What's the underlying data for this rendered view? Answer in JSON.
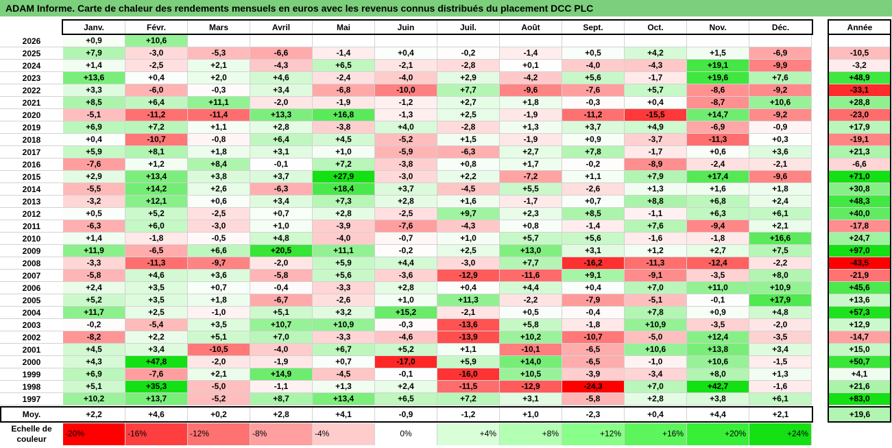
{
  "title": "ADAM Informe. Carte de chaleur des rendements mensuels en euros avec les revenus connus distribués du placement DCC PLC",
  "chart_data": {
    "type": "heatmap",
    "title": "ADAM Informe. Carte de chaleur des rendements mensuels en euros avec les revenus connus distribués du placement DCC PLC",
    "columns": [
      "Janv.",
      "Févr.",
      "Mars",
      "Avril",
      "Mai",
      "Juin",
      "Juil.",
      "Août",
      "Sept.",
      "Oct.",
      "Nov.",
      "Déc."
    ],
    "annual_header": "Année",
    "rows": [
      {
        "year": "2026",
        "values": [
          "+0,9",
          "+10,6",
          "",
          "",
          "",
          "",
          "",
          "",
          "",
          "",
          "",
          ""
        ],
        "annual": ""
      },
      {
        "year": "2025",
        "values": [
          "+7,9",
          "-3,0",
          "-5,3",
          "-6,6",
          "-1,4",
          "+0,4",
          "-0,2",
          "-1,4",
          "+0,5",
          "+4,2",
          "+1,5",
          "-6,9"
        ],
        "annual": "-10,5"
      },
      {
        "year": "2024",
        "values": [
          "+1,4",
          "-2,5",
          "+2,1",
          "-4,3",
          "+6,5",
          "-2,1",
          "-2,8",
          "+0,1",
          "-4,0",
          "-4,3",
          "+19,1",
          "-9,9"
        ],
        "annual": "-3,2"
      },
      {
        "year": "2023",
        "values": [
          "+13,6",
          "+0,4",
          "+2,0",
          "+4,6",
          "-2,4",
          "-4,0",
          "+2,9",
          "-4,2",
          "+5,6",
          "-1,7",
          "+19,6",
          "+7,6"
        ],
        "annual": "+48,9"
      },
      {
        "year": "2022",
        "values": [
          "+3,3",
          "-6,0",
          "-0,3",
          "+3,4",
          "-6,8",
          "-10,0",
          "+7,7",
          "-9,6",
          "-7,6",
          "+5,7",
          "-8,6",
          "-9,2"
        ],
        "annual": "-33,1"
      },
      {
        "year": "2021",
        "values": [
          "+8,5",
          "+6,4",
          "+11,1",
          "-2,0",
          "-1,9",
          "-1,2",
          "+2,7",
          "+1,8",
          "-0,3",
          "+0,4",
          "-8,7",
          "+10,6"
        ],
        "annual": "+28,8"
      },
      {
        "year": "2020",
        "values": [
          "-5,1",
          "-11,2",
          "-11,4",
          "+13,3",
          "+16,8",
          "-1,3",
          "+2,5",
          "-1,9",
          "-11,2",
          "-15,5",
          "+14,7",
          "-9,2"
        ],
        "annual": "-23,0"
      },
      {
        "year": "2019",
        "values": [
          "+6,9",
          "+7,2",
          "+1,1",
          "+2,8",
          "-3,8",
          "+4,0",
          "-2,8",
          "+1,3",
          "+3,7",
          "+4,9",
          "-6,9",
          "-0,9"
        ],
        "annual": "+17,9"
      },
      {
        "year": "2018",
        "values": [
          "+0,4",
          "-10,7",
          "-0,8",
          "+6,4",
          "+4,5",
          "-5,2",
          "+1,5",
          "-1,9",
          "+0,9",
          "-3,7",
          "-11,3",
          "+0,3"
        ],
        "annual": "-19,1"
      },
      {
        "year": "2017",
        "values": [
          "+5,9",
          "+8,1",
          "+1,8",
          "+3,1",
          "+1,0",
          "-5,9",
          "-6,3",
          "+2,7",
          "+7,8",
          "-1,7",
          "+0,6",
          "+3,6"
        ],
        "annual": "+21,3"
      },
      {
        "year": "2016",
        "values": [
          "-7,6",
          "+1,2",
          "+8,4",
          "-0,1",
          "+7,2",
          "-3,8",
          "+0,8",
          "+1,7",
          "-0,2",
          "-8,9",
          "-2,4",
          "-2,1"
        ],
        "annual": "-6,6"
      },
      {
        "year": "2015",
        "values": [
          "+2,9",
          "+13,4",
          "+3,8",
          "+3,7",
          "+27,9",
          "-3,0",
          "+2,2",
          "-7,2",
          "+1,1",
          "+7,9",
          "+17,4",
          "-9,6"
        ],
        "annual": "+71,0"
      },
      {
        "year": "2014",
        "values": [
          "-5,5",
          "+14,2",
          "+2,6",
          "-6,3",
          "+18,4",
          "+3,7",
          "-4,5",
          "+5,5",
          "-2,6",
          "+1,3",
          "+1,6",
          "+1,8"
        ],
        "annual": "+30,8"
      },
      {
        "year": "2013",
        "values": [
          "-3,2",
          "+12,1",
          "+0,6",
          "+3,4",
          "+7,3",
          "+2,8",
          "+1,6",
          "-1,7",
          "+0,7",
          "+8,8",
          "+6,8",
          "+2,4"
        ],
        "annual": "+48,3"
      },
      {
        "year": "2012",
        "values": [
          "+0,5",
          "+5,2",
          "-2,5",
          "+0,7",
          "+2,8",
          "-2,5",
          "+9,7",
          "+2,3",
          "+8,5",
          "-1,1",
          "+6,3",
          "+6,1"
        ],
        "annual": "+40,0"
      },
      {
        "year": "2011",
        "values": [
          "-6,3",
          "+6,0",
          "-3,0",
          "+1,0",
          "-3,9",
          "-7,6",
          "-4,3",
          "+0,8",
          "-1,4",
          "+7,6",
          "-9,4",
          "+2,1"
        ],
        "annual": "-17,8"
      },
      {
        "year": "2010",
        "values": [
          "+1,4",
          "-1,8",
          "-0,5",
          "+4,8",
          "-4,0",
          "-0,7",
          "+1,0",
          "+5,7",
          "+5,6",
          "-1,6",
          "-1,8",
          "+16,6"
        ],
        "annual": "+24,7"
      },
      {
        "year": "2009",
        "values": [
          "+11,9",
          "-6,5",
          "+6,6",
          "+20,5",
          "+11,1",
          "-0,2",
          "+2,5",
          "+13,0",
          "+3,1",
          "+1,2",
          "+2,7",
          "+7,5"
        ],
        "annual": "+97,0"
      },
      {
        "year": "2008",
        "values": [
          "-3,3",
          "-11,3",
          "-9,7",
          "-2,0",
          "+5,9",
          "+4,4",
          "-3,0",
          "+7,7",
          "-16,2",
          "-11,3",
          "-12,4",
          "-2,2"
        ],
        "annual": "-43,5"
      },
      {
        "year": "2007",
        "values": [
          "-5,8",
          "+4,6",
          "+3,6",
          "-5,8",
          "+5,6",
          "-3,6",
          "-12,9",
          "-11,6",
          "+9,1",
          "-9,1",
          "-3,5",
          "+8,0"
        ],
        "annual": "-21,9"
      },
      {
        "year": "2006",
        "values": [
          "+2,4",
          "+3,5",
          "+0,7",
          "-0,4",
          "-3,3",
          "+2,8",
          "+0,4",
          "+4,4",
          "+0,4",
          "+7,0",
          "+11,0",
          "+10,9"
        ],
        "annual": "+45,6"
      },
      {
        "year": "2005",
        "values": [
          "+5,2",
          "+3,5",
          "+1,8",
          "-6,7",
          "-2,6",
          "+1,0",
          "+11,3",
          "-2,2",
          "-7,9",
          "-5,1",
          "-0,1",
          "+17,9"
        ],
        "annual": "+13,6"
      },
      {
        "year": "2004",
        "values": [
          "+11,7",
          "+2,5",
          "-1,0",
          "+5,1",
          "+3,2",
          "+15,2",
          "-2,1",
          "+0,5",
          "-0,4",
          "+7,8",
          "+0,9",
          "+4,8"
        ],
        "annual": "+57,3"
      },
      {
        "year": "2003",
        "values": [
          "-0,2",
          "-5,4",
          "+3,5",
          "+10,7",
          "+10,9",
          "-0,3",
          "-13,6",
          "+5,8",
          "-1,8",
          "+10,9",
          "-3,5",
          "-2,0"
        ],
        "annual": "+12,9"
      },
      {
        "year": "2002",
        "values": [
          "-8,2",
          "+2,2",
          "+5,1",
          "+7,0",
          "-3,3",
          "-4,6",
          "-13,9",
          "+10,2",
          "-10,7",
          "-5,0",
          "+12,4",
          "-3,5"
        ],
        "annual": "-14,7"
      },
      {
        "year": "2001",
        "values": [
          "+4,5",
          "+3,4",
          "-10,5",
          "-4,0",
          "+6,7",
          "+5,2",
          "+1,1",
          "-10,1",
          "-6,5",
          "+10,6",
          "+13,8",
          "+3,4"
        ],
        "annual": "+15,0"
      },
      {
        "year": "2000",
        "values": [
          "+4,3",
          "+47,8",
          "-2,0",
          "-1,9",
          "+0,7",
          "-17,0",
          "+5,9",
          "+14,0",
          "-6,5",
          "-1,0",
          "+10,6",
          "-1,5"
        ],
        "annual": "+50,7"
      },
      {
        "year": "1999",
        "values": [
          "+6,9",
          "-7,6",
          "+2,1",
          "+14,9",
          "-4,5",
          "-0,1",
          "-16,0",
          "+10,5",
          "-3,9",
          "-3,4",
          "+8,0",
          "+1,3"
        ],
        "annual": "+4,1"
      },
      {
        "year": "1998",
        "values": [
          "+5,1",
          "+35,3",
          "-5,0",
          "-1,1",
          "+1,3",
          "+2,4",
          "-11,5",
          "-12,9",
          "-24,3",
          "+7,0",
          "+42,7",
          "-1,6"
        ],
        "annual": "+21,6"
      },
      {
        "year": "1997",
        "values": [
          "+10,2",
          "+13,7",
          "-5,2",
          "+8,7",
          "+13,4",
          "+6,5",
          "+7,2",
          "+3,1",
          "-5,8",
          "+2,8",
          "+3,8",
          "+6,1"
        ],
        "annual": "+83,0"
      }
    ],
    "average": {
      "label": "Moy.",
      "values": [
        "+2,2",
        "+4,6",
        "+0,2",
        "+2,8",
        "+4,1",
        "-0,9",
        "-1,2",
        "+1,0",
        "-2,3",
        "+0,4",
        "+4,4",
        "+2,1"
      ],
      "annual": "+19,6"
    },
    "scale": {
      "label": "Echelle de couleur",
      "stops": [
        "-20%",
        "-16%",
        "-12%",
        "-8%",
        "-4%",
        "0%",
        "+4%",
        "+8%",
        "+12%",
        "+16%",
        "+20%",
        "+24%"
      ],
      "colors": [
        "#ff0000",
        "#ff3f3f",
        "#ff7272",
        "#ff9f9f",
        "#ffcccc",
        "#ffffff",
        "#d8ffd8",
        "#b3ffb3",
        "#88ff88",
        "#5cf65c",
        "#37ef37",
        "#14e114"
      ]
    }
  }
}
